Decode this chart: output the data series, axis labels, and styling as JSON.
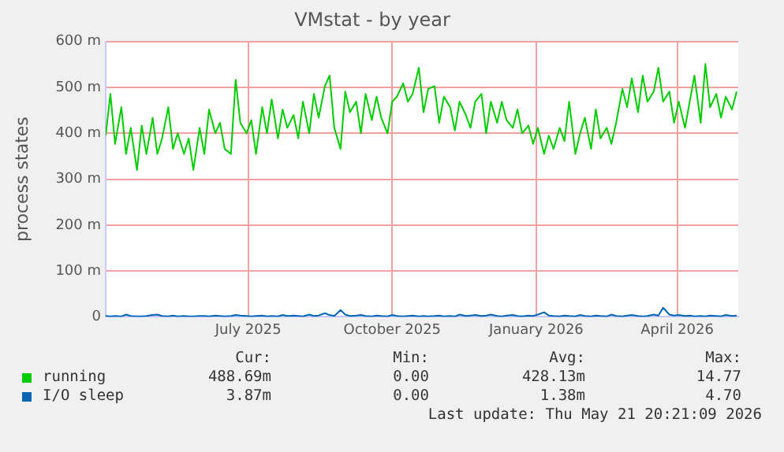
{
  "chart_data": {
    "type": "line",
    "title": "VMstat - by year",
    "ylabel": "process states",
    "x": [
      "2025-04-01",
      "2025-04-04",
      "2025-04-07",
      "2025-04-11",
      "2025-04-14",
      "2025-04-17",
      "2025-04-21",
      "2025-04-24",
      "2025-04-27",
      "2025-05-01",
      "2025-05-04",
      "2025-05-07",
      "2025-05-11",
      "2025-05-14",
      "2025-05-17",
      "2025-05-21",
      "2025-05-24",
      "2025-05-27",
      "2025-05-31",
      "2025-06-03",
      "2025-06-06",
      "2025-06-10",
      "2025-06-13",
      "2025-06-16",
      "2025-06-20",
      "2025-06-23",
      "2025-06-26",
      "2025-06-30",
      "2025-07-03",
      "2025-07-06",
      "2025-07-10",
      "2025-07-13",
      "2025-07-16",
      "2025-07-20",
      "2025-07-23",
      "2025-07-26",
      "2025-07-30",
      "2025-08-02",
      "2025-08-05",
      "2025-08-09",
      "2025-08-12",
      "2025-08-15",
      "2025-08-19",
      "2025-08-22",
      "2025-08-25",
      "2025-08-29",
      "2025-09-01",
      "2025-09-04",
      "2025-09-08",
      "2025-09-11",
      "2025-09-14",
      "2025-09-18",
      "2025-09-21",
      "2025-09-24",
      "2025-09-28",
      "2025-10-01",
      "2025-10-04",
      "2025-10-08",
      "2025-10-11",
      "2025-10-14",
      "2025-10-18",
      "2025-10-21",
      "2025-10-24",
      "2025-10-28",
      "2025-10-31",
      "2025-11-03",
      "2025-11-07",
      "2025-11-10",
      "2025-11-13",
      "2025-11-17",
      "2025-11-20",
      "2025-11-23",
      "2025-11-27",
      "2025-11-30",
      "2025-12-03",
      "2025-12-07",
      "2025-12-10",
      "2025-12-13",
      "2025-12-17",
      "2025-12-20",
      "2025-12-23",
      "2025-12-27",
      "2025-12-30",
      "2026-01-02",
      "2026-01-06",
      "2026-01-09",
      "2026-01-12",
      "2026-01-16",
      "2026-01-19",
      "2026-01-22",
      "2026-01-26",
      "2026-01-29",
      "2026-02-01",
      "2026-02-05",
      "2026-02-08",
      "2026-02-11",
      "2026-02-15",
      "2026-02-18",
      "2026-02-21",
      "2026-02-25",
      "2026-02-28",
      "2026-03-03",
      "2026-03-07",
      "2026-03-10",
      "2026-03-13",
      "2026-03-17",
      "2026-03-20",
      "2026-03-23",
      "2026-03-27",
      "2026-03-30",
      "2026-04-02",
      "2026-04-06",
      "2026-04-09",
      "2026-04-12",
      "2026-04-16",
      "2026-04-19",
      "2026-04-22",
      "2026-04-26",
      "2026-04-29",
      "2026-05-02",
      "2026-05-06",
      "2026-05-09"
    ],
    "series": [
      {
        "name": "running",
        "color": "#00cc00",
        "values": [
          395,
          486,
          377,
          457,
          355,
          412,
          320,
          417,
          355,
          434,
          355,
          389,
          457,
          366,
          400,
          355,
          389,
          320,
          412,
          355,
          452,
          400,
          423,
          366,
          355,
          517,
          423,
          400,
          429,
          355,
          457,
          400,
          474,
          389,
          452,
          412,
          440,
          389,
          469,
          400,
          486,
          434,
          503,
          526,
          412,
          366,
          491,
          446,
          469,
          400,
          486,
          429,
          480,
          434,
          400,
          469,
          480,
          509,
          469,
          486,
          543,
          446,
          497,
          503,
          423,
          480,
          457,
          406,
          469,
          440,
          412,
          469,
          486,
          400,
          469,
          423,
          469,
          429,
          412,
          452,
          400,
          417,
          377,
          412,
          355,
          395,
          366,
          412,
          383,
          469,
          355,
          400,
          434,
          366,
          452,
          389,
          412,
          377,
          423,
          497,
          457,
          520,
          446,
          526,
          469,
          491,
          543,
          469,
          491,
          423,
          469,
          412,
          469,
          526,
          423,
          551,
          457,
          486,
          434,
          480,
          452,
          491
        ]
      },
      {
        "name": "I/O sleep",
        "color": "#0066b3",
        "values": [
          2,
          1,
          2,
          1,
          5,
          2,
          1,
          1,
          2,
          4,
          5,
          2,
          1,
          3,
          1,
          2,
          1,
          1,
          2,
          2,
          1,
          3,
          2,
          1,
          2,
          4,
          3,
          2,
          1,
          2,
          3,
          1,
          2,
          1,
          4,
          2,
          3,
          2,
          1,
          5,
          2,
          3,
          8,
          4,
          2,
          15,
          5,
          2,
          3,
          4,
          2,
          1,
          3,
          2,
          1,
          4,
          2,
          1,
          2,
          3,
          1,
          2,
          1,
          2,
          3,
          1,
          2,
          1,
          5,
          2,
          3,
          4,
          2,
          3,
          5,
          2,
          1,
          3,
          4,
          2,
          1,
          3,
          2,
          5,
          10,
          3,
          2,
          1,
          3,
          2,
          1,
          4,
          2,
          1,
          3,
          2,
          1,
          5,
          2,
          1,
          3,
          4,
          2,
          1,
          2,
          5,
          3,
          20,
          5,
          3,
          4,
          2,
          3,
          1,
          2,
          1,
          3,
          2,
          1,
          4,
          2,
          3
        ]
      }
    ],
    "xlim": [
      "2025-04-01",
      "2026-05-10"
    ],
    "xticks": [
      {
        "value": "2025-07-01",
        "label": "July 2025"
      },
      {
        "value": "2025-10-01",
        "label": "October 2025"
      },
      {
        "value": "2026-01-01",
        "label": "January 2026"
      },
      {
        "value": "2026-04-01",
        "label": "April 2026"
      }
    ],
    "ylim": [
      0,
      600
    ],
    "yticks": [
      {
        "value": 0,
        "label": "0"
      },
      {
        "value": 100,
        "label": "100 m"
      },
      {
        "value": 200,
        "label": "200 m"
      },
      {
        "value": 300,
        "label": "300 m"
      },
      {
        "value": 400,
        "label": "400 m"
      },
      {
        "value": 500,
        "label": "500 m"
      },
      {
        "value": 600,
        "label": "600 m"
      }
    ],
    "grid": true,
    "legend": "bottom",
    "annotations": [
      "Cur:",
      "Min:",
      "Avg:",
      "Max:",
      "488.69m",
      "0.00",
      "428.13m",
      "14.77",
      "3.87m",
      "0.00",
      "1.38m",
      "4.70",
      "Last update: Thu May 21 20:21:09 2026"
    ]
  }
}
